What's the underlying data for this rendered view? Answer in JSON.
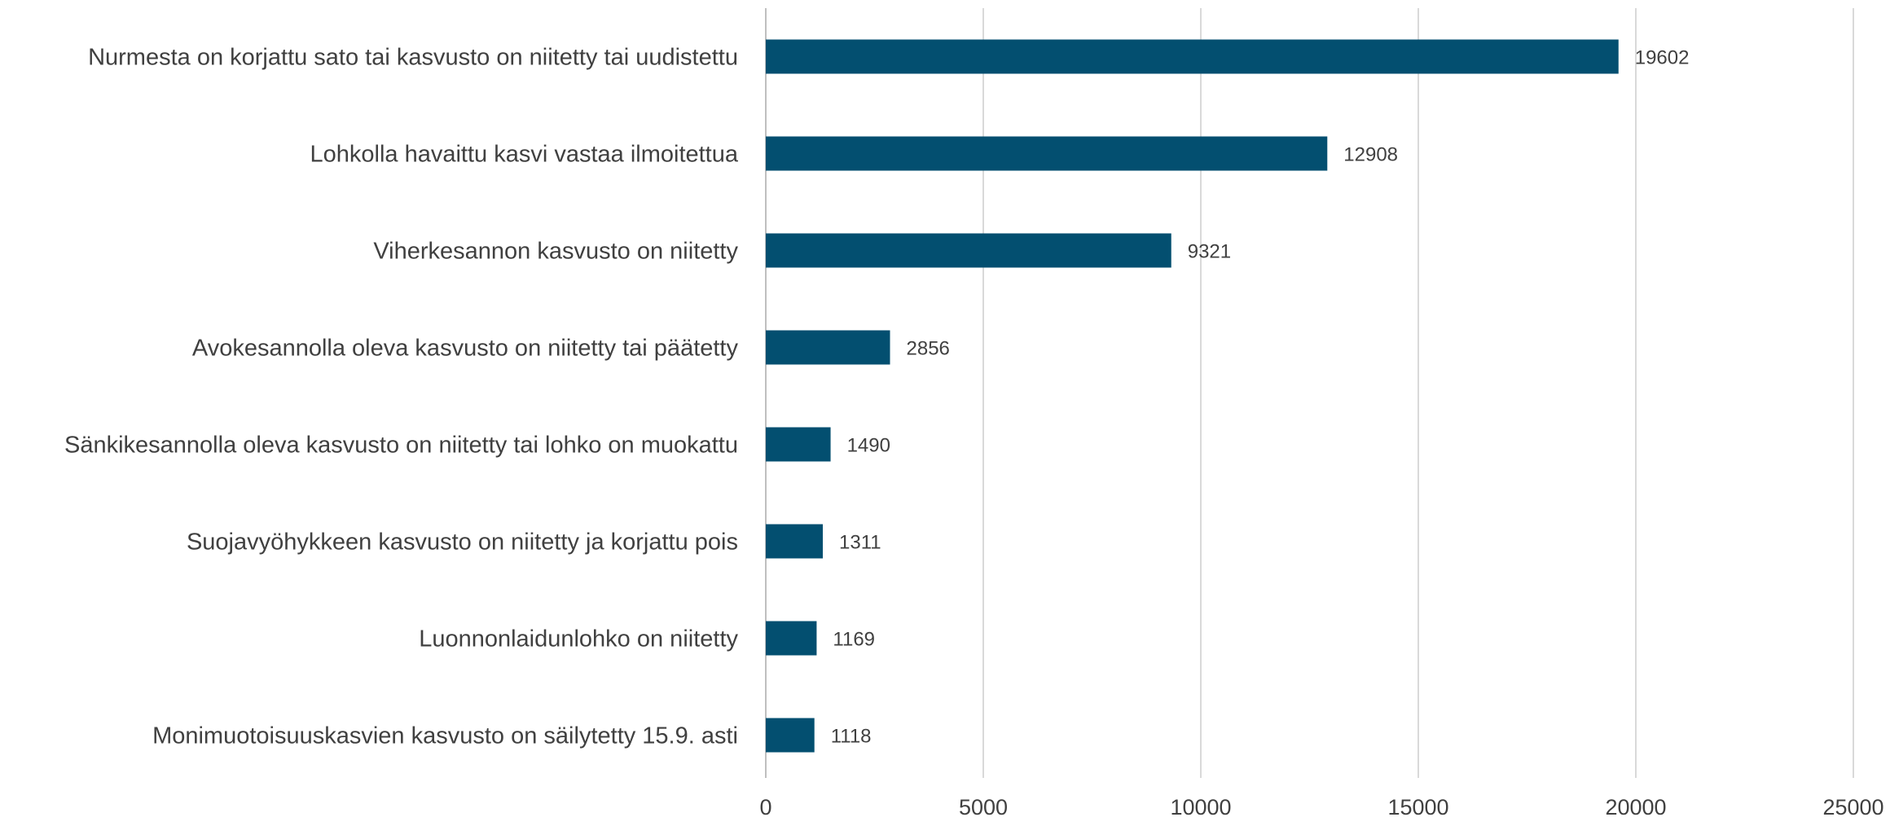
{
  "chart_data": {
    "type": "bar",
    "orientation": "horizontal",
    "title": "",
    "xlabel": "",
    "ylabel": "",
    "categories": [
      "Nurmesta on korjattu sato tai kasvusto on niitetty tai uudistettu",
      "Lohkolla havaittu kasvi vastaa ilmoitettua",
      "Viherkesannon kasvusto on niitetty",
      "Avokesannolla oleva kasvusto on niitetty tai päätetty",
      "Sänkikesannolla oleva kasvusto on niitetty tai lohko on muokattu",
      "Suojavyöhykkeen kasvusto on niitetty ja korjattu pois",
      "Luonnonlaidunlohko on niitetty",
      "Monimuotoisuuskasvien kasvusto on säilytetty 15.9. asti"
    ],
    "values": [
      19602,
      12908,
      9321,
      2856,
      1490,
      1311,
      1169,
      1118
    ],
    "xlim": [
      0,
      25000
    ],
    "x_ticks": [
      "0",
      "5000",
      "10000",
      "15000",
      "20000",
      "25000"
    ],
    "grid": "vertical",
    "legend": "none",
    "data_labels": true,
    "bar_color": "#034f70",
    "grid_color": "#d9d9d9",
    "label_color": "#404040",
    "value_label_color": "#404040"
  }
}
